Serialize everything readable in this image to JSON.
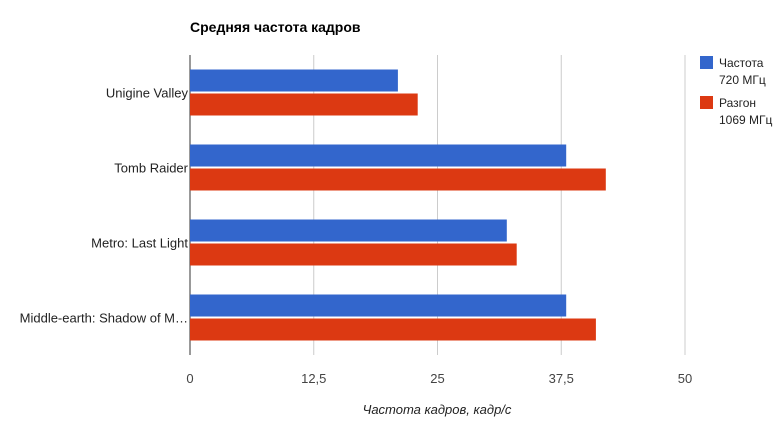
{
  "chart_data": {
    "type": "bar",
    "orientation": "horizontal",
    "title": "Средняя частота кадров",
    "xlabel": "Частота кадров, кадр/с",
    "ylabel": "",
    "xlim": [
      0,
      50
    ],
    "ticks": [
      0,
      12.5,
      25,
      37.5,
      50
    ],
    "tick_labels": [
      "0",
      "12,5",
      "25",
      "37,5",
      "50"
    ],
    "grid": true,
    "legend_position": "right",
    "categories": [
      "Unigine Valley",
      "Tomb Raider",
      "Metro: Last Light",
      "Middle-earth: Shadow of M…"
    ],
    "series": [
      {
        "name_lines": [
          "Частота",
          "720 МГц"
        ],
        "color": "#3366cc",
        "values": [
          21,
          38,
          32,
          38
        ]
      },
      {
        "name_lines": [
          "Разгон",
          "1069 МГц"
        ],
        "color": "#dc3912",
        "values": [
          23,
          42,
          33,
          41
        ]
      }
    ]
  }
}
